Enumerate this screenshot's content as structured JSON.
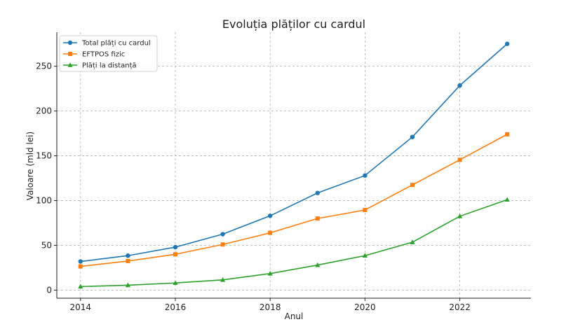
{
  "chart_data": {
    "type": "line",
    "title": "Evoluția plăților cu cardul",
    "xlabel": "Anul",
    "ylabel": "Valoare (mld lei)",
    "x": [
      2014,
      2015,
      2016,
      2017,
      2018,
      2019,
      2020,
      2021,
      2022,
      2023
    ],
    "xlim": [
      2013.5,
      2023.5
    ],
    "ylim": [
      -9,
      288
    ],
    "xticks": [
      2014,
      2016,
      2018,
      2020,
      2022
    ],
    "yticks": [
      0,
      50,
      100,
      150,
      200,
      250
    ],
    "grid": true,
    "legend_position": "top-left",
    "series": [
      {
        "name": "Total plăți cu cardul",
        "color": "#1f77b4",
        "marker": "circle",
        "values": [
          32,
          38.5,
          48,
          62.5,
          83,
          108.5,
          128,
          171,
          228.5,
          275
        ]
      },
      {
        "name": "EFTPOS fizic",
        "color": "#ff7f0e",
        "marker": "square",
        "values": [
          26.5,
          32.5,
          40,
          51,
          64,
          80,
          89.5,
          117.5,
          145.5,
          174
        ]
      },
      {
        "name": "Plăți la distanță",
        "color": "#2ca02c",
        "marker": "triangle",
        "values": [
          4,
          5.5,
          8,
          11.5,
          18.5,
          28,
          38.5,
          53.5,
          82.5,
          101
        ]
      }
    ]
  }
}
